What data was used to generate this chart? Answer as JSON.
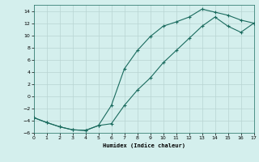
{
  "xlabel": "Humidex (Indice chaleur)",
  "xlim": [
    0,
    17
  ],
  "ylim": [
    -6,
    15
  ],
  "xticks": [
    0,
    1,
    2,
    3,
    4,
    5,
    6,
    7,
    8,
    9,
    10,
    11,
    12,
    13,
    14,
    15,
    16,
    17
  ],
  "yticks": [
    -6,
    -4,
    -2,
    0,
    2,
    4,
    6,
    8,
    10,
    12,
    14
  ],
  "background_color": "#d4efed",
  "line_color": "#1a6b5e",
  "grid_color": "#b8d4d2",
  "curve1_x": [
    0,
    1,
    2,
    3,
    4,
    5,
    6,
    7,
    8,
    9,
    10,
    11,
    12,
    13,
    14,
    15,
    16,
    17
  ],
  "curve1_y": [
    -3.5,
    -4.3,
    -5.0,
    -5.5,
    -5.6,
    -4.8,
    -1.5,
    4.5,
    7.5,
    9.8,
    11.5,
    12.2,
    13.0,
    14.3,
    13.8,
    13.3,
    12.5,
    12.0
  ],
  "curve2_x": [
    0,
    1,
    2,
    3,
    4,
    5,
    6,
    7,
    8,
    9,
    10,
    11,
    12,
    13,
    14,
    15,
    16,
    17
  ],
  "curve2_y": [
    -3.5,
    -4.3,
    -5.0,
    -5.5,
    -5.6,
    -4.8,
    -4.5,
    -1.5,
    1.0,
    3.0,
    5.5,
    7.5,
    9.5,
    11.5,
    13.0,
    11.5,
    10.5,
    12.0
  ]
}
